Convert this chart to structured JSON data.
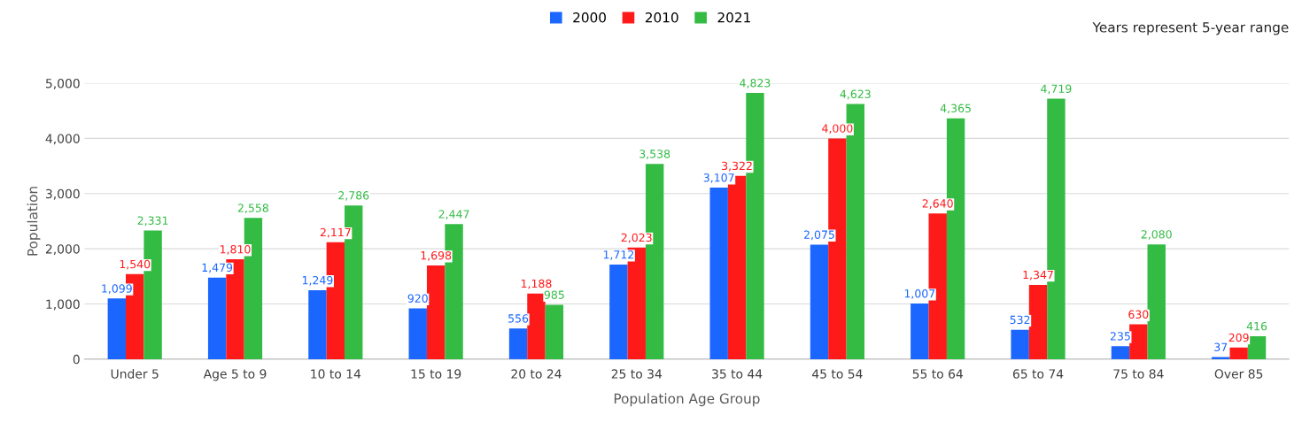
{
  "chart_data": {
    "type": "bar",
    "xlabel": "Population Age Group",
    "ylabel": "Population",
    "annotations": [
      "Years represent 5-year range"
    ],
    "categories": [
      "Under 5",
      "Age 5 to 9",
      "10 to 14",
      "15 to 19",
      "20 to 24",
      "25 to 34",
      "35 to 44",
      "45 to 54",
      "55 to 64",
      "65 to 74",
      "75 to 84",
      "Over 85"
    ],
    "series": [
      {
        "name": "2000",
        "color": "#1a66ff",
        "values": [
          1099,
          1479,
          1249,
          920,
          556,
          1712,
          3107,
          2075,
          1007,
          532,
          235,
          37
        ],
        "value_labels": [
          "1,099",
          "1,479",
          "1,249",
          "920",
          "556",
          "1,712",
          "3,107",
          "2,075",
          "1,007",
          "532",
          "235",
          "37"
        ]
      },
      {
        "name": "2010",
        "color": "#ff1a1a",
        "values": [
          1540,
          1810,
          2117,
          1698,
          1188,
          2023,
          3322,
          4000,
          2640,
          1347,
          630,
          209
        ],
        "value_labels": [
          "1,540",
          "1,810",
          "2,117",
          "1,698",
          "1,188",
          "2,023",
          "3,322",
          "4,000",
          "2,640",
          "1,347",
          "630",
          "209"
        ]
      },
      {
        "name": "2021",
        "color": "#33bb44",
        "values": [
          2331,
          2558,
          2786,
          2447,
          985,
          3538,
          4823,
          4623,
          4365,
          4719,
          2080,
          416
        ],
        "value_labels": [
          "2,331",
          "2,558",
          "2,786",
          "2,447",
          "985",
          "3,538",
          "4,823",
          "4,623",
          "4,365",
          "4,719",
          "2,080",
          "416"
        ]
      }
    ],
    "ylim": [
      0,
      5000
    ],
    "yticks": [
      0,
      {
        "value": 1000,
        "label": "1,000"
      },
      {
        "value": 2000,
        "label": "2,000"
      },
      {
        "value": 3000,
        "label": "3,000"
      },
      {
        "value": 4000,
        "label": "4,000"
      },
      {
        "value": 5000,
        "label": "5,000"
      }
    ],
    "grid": "y",
    "legend": "top"
  }
}
